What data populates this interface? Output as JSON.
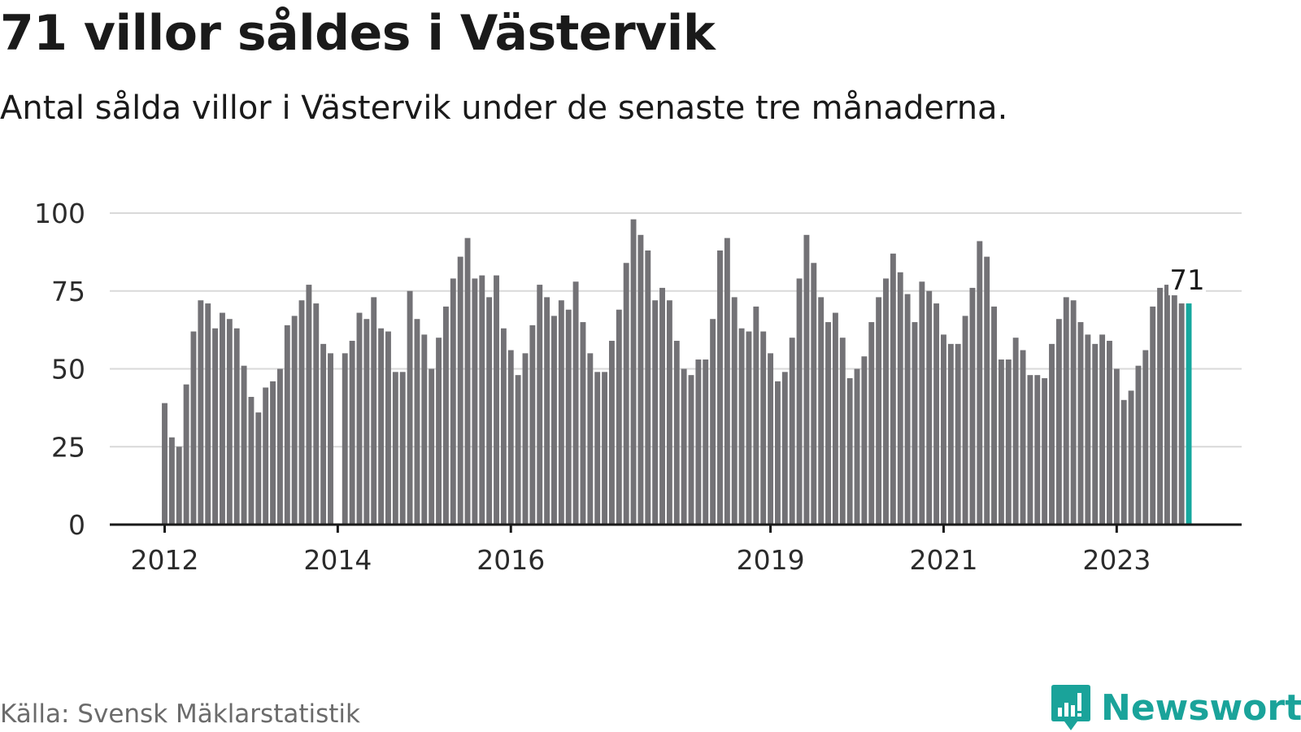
{
  "title": "71 villor såldes i Västervik",
  "subtitle": "Antal sålda villor i Västervik under de senaste tre månaderna.",
  "source": "Källa: Svensk Mäklarstatistik",
  "brand": {
    "name": "Newsworthy",
    "icon": "newsworthy-bar-chart-icon",
    "color": "#1aa39a"
  },
  "colors": {
    "bar": "#737276",
    "highlight": "#16a89e",
    "grid": "#d9d9d9",
    "axis": "#1a1a1a"
  },
  "chart_data": {
    "type": "bar",
    "title": "71 villor såldes i Västervik",
    "xlabel": "",
    "ylabel": "",
    "ylim": [
      0,
      100
    ],
    "yticks": [
      0,
      25,
      50,
      75,
      100
    ],
    "grid": true,
    "x_start": "2012-01",
    "x_end": "2024-03",
    "xticks": [
      {
        "label": "2012",
        "index": 0
      },
      {
        "label": "2014",
        "index": 24
      },
      {
        "label": "2016",
        "index": 48
      },
      {
        "label": "2019",
        "index": 84
      },
      {
        "label": "2021",
        "index": 108
      },
      {
        "label": "2023",
        "index": 132
      }
    ],
    "values": [
      39,
      28,
      25,
      45,
      62,
      72,
      71,
      63,
      68,
      66,
      63,
      51,
      41,
      36,
      44,
      46,
      50,
      64,
      67,
      72,
      77,
      71,
      58,
      55,
      null,
      55,
      59,
      68,
      66,
      73,
      63,
      62,
      49,
      49,
      75,
      66,
      61,
      50,
      60,
      70,
      79,
      86,
      92,
      79,
      80,
      73,
      80,
      63,
      56,
      48,
      55,
      64,
      77,
      73,
      67,
      72,
      69,
      78,
      65,
      55,
      49,
      49,
      59,
      69,
      84,
      98,
      93,
      88,
      72,
      76,
      72,
      59,
      50,
      48,
      53,
      53,
      66,
      88,
      92,
      73,
      63,
      62,
      70,
      62,
      55,
      46,
      49,
      60,
      79,
      93,
      84,
      73,
      65,
      68,
      60,
      47,
      50,
      54,
      65,
      73,
      79,
      87,
      81,
      74,
      65,
      78,
      75,
      71,
      61,
      58,
      58,
      67,
      76,
      91,
      86,
      70,
      53,
      53,
      60,
      56,
      48,
      48,
      47,
      58,
      66,
      73,
      72,
      65,
      61,
      58,
      61,
      59,
      50,
      40,
      43,
      51,
      56,
      70,
      76,
      77,
      75,
      71,
      71
    ],
    "highlight_index": 142,
    "annotation": {
      "label": "71",
      "value": 71
    }
  }
}
